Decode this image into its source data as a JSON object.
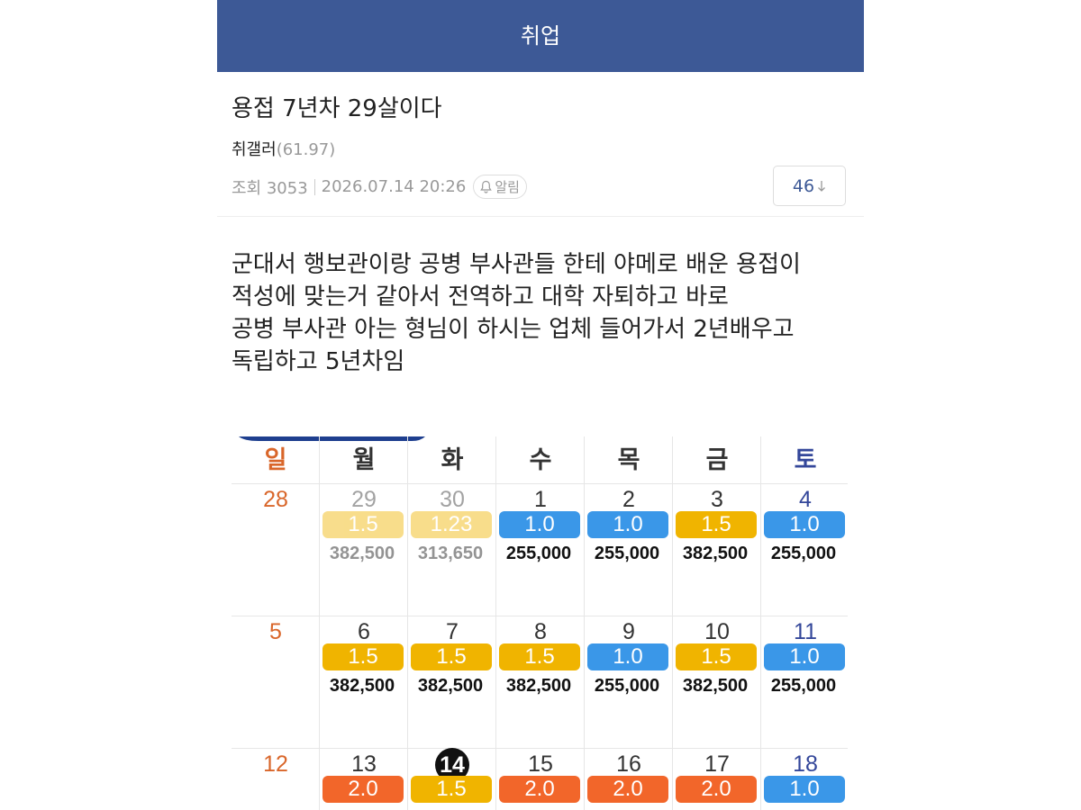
{
  "header": {
    "title": "취업"
  },
  "post": {
    "title": "용접 7년차 29살이다",
    "author": "취갤러",
    "author_ip": "(61.97)",
    "views": "조회 3053",
    "date": "2026.07.14 20:26",
    "alarm": "알림",
    "comments": "46",
    "body": [
      "군대서 행보관이랑 공병 부사관들 한테 야메로 배운 용접이",
      "적성에 맞는거 같아서 전역하고 대학 자퇴하고 바로",
      "공병 부사관 아는 형님이 하시는 업체 들어가서 2년배우고",
      "독립하고 5년차임"
    ]
  },
  "calendar": {
    "weekdays": [
      {
        "label": "일",
        "color": "#d9662a"
      },
      {
        "label": "월",
        "color": "#333333"
      },
      {
        "label": "화",
        "color": "#333333"
      },
      {
        "label": "수",
        "color": "#333333"
      },
      {
        "label": "목",
        "color": "#333333"
      },
      {
        "label": "금",
        "color": "#333333"
      },
      {
        "label": "토",
        "color": "#34479a"
      }
    ],
    "weeks": [
      [
        {
          "day": "28"
        },
        {
          "day": "29",
          "rate": "1.5",
          "color": "#f0b400",
          "pay": "382,500"
        },
        {
          "day": "30",
          "rate": "1.23",
          "color": "#f0b400",
          "pay": "313,650"
        },
        {
          "day": "1",
          "rate": "1.0",
          "color": "#3a97e8",
          "pay": "255,000"
        },
        {
          "day": "2",
          "rate": "1.0",
          "color": "#3a97e8",
          "pay": "255,000"
        },
        {
          "day": "3",
          "rate": "1.5",
          "color": "#f0b400",
          "pay": "382,500"
        },
        {
          "day": "4",
          "rate": "1.0",
          "color": "#3a97e8",
          "pay": "255,000"
        }
      ],
      [
        {
          "day": "5"
        },
        {
          "day": "6",
          "rate": "1.5",
          "color": "#f0b400",
          "pay": "382,500"
        },
        {
          "day": "7",
          "rate": "1.5",
          "color": "#f0b400",
          "pay": "382,500"
        },
        {
          "day": "8",
          "rate": "1.5",
          "color": "#f0b400",
          "pay": "382,500"
        },
        {
          "day": "9",
          "rate": "1.0",
          "color": "#3a97e8",
          "pay": "255,000"
        },
        {
          "day": "10",
          "rate": "1.5",
          "color": "#f0b400",
          "pay": "382,500"
        },
        {
          "day": "11",
          "rate": "1.0",
          "color": "#3a97e8",
          "pay": "255,000"
        }
      ],
      [
        {
          "day": "12"
        },
        {
          "day": "13",
          "rate": "2.0",
          "color": "#f2662a"
        },
        {
          "day": "14",
          "rate": "1.5",
          "color": "#f0b400",
          "highlight": true
        },
        {
          "day": "15",
          "rate": "2.0",
          "color": "#f2662a"
        },
        {
          "day": "16",
          "rate": "2.0",
          "color": "#f2662a"
        },
        {
          "day": "17",
          "rate": "2.0",
          "color": "#f2662a"
        },
        {
          "day": "18",
          "rate": "1.0",
          "color": "#3a97e8"
        }
      ]
    ]
  }
}
